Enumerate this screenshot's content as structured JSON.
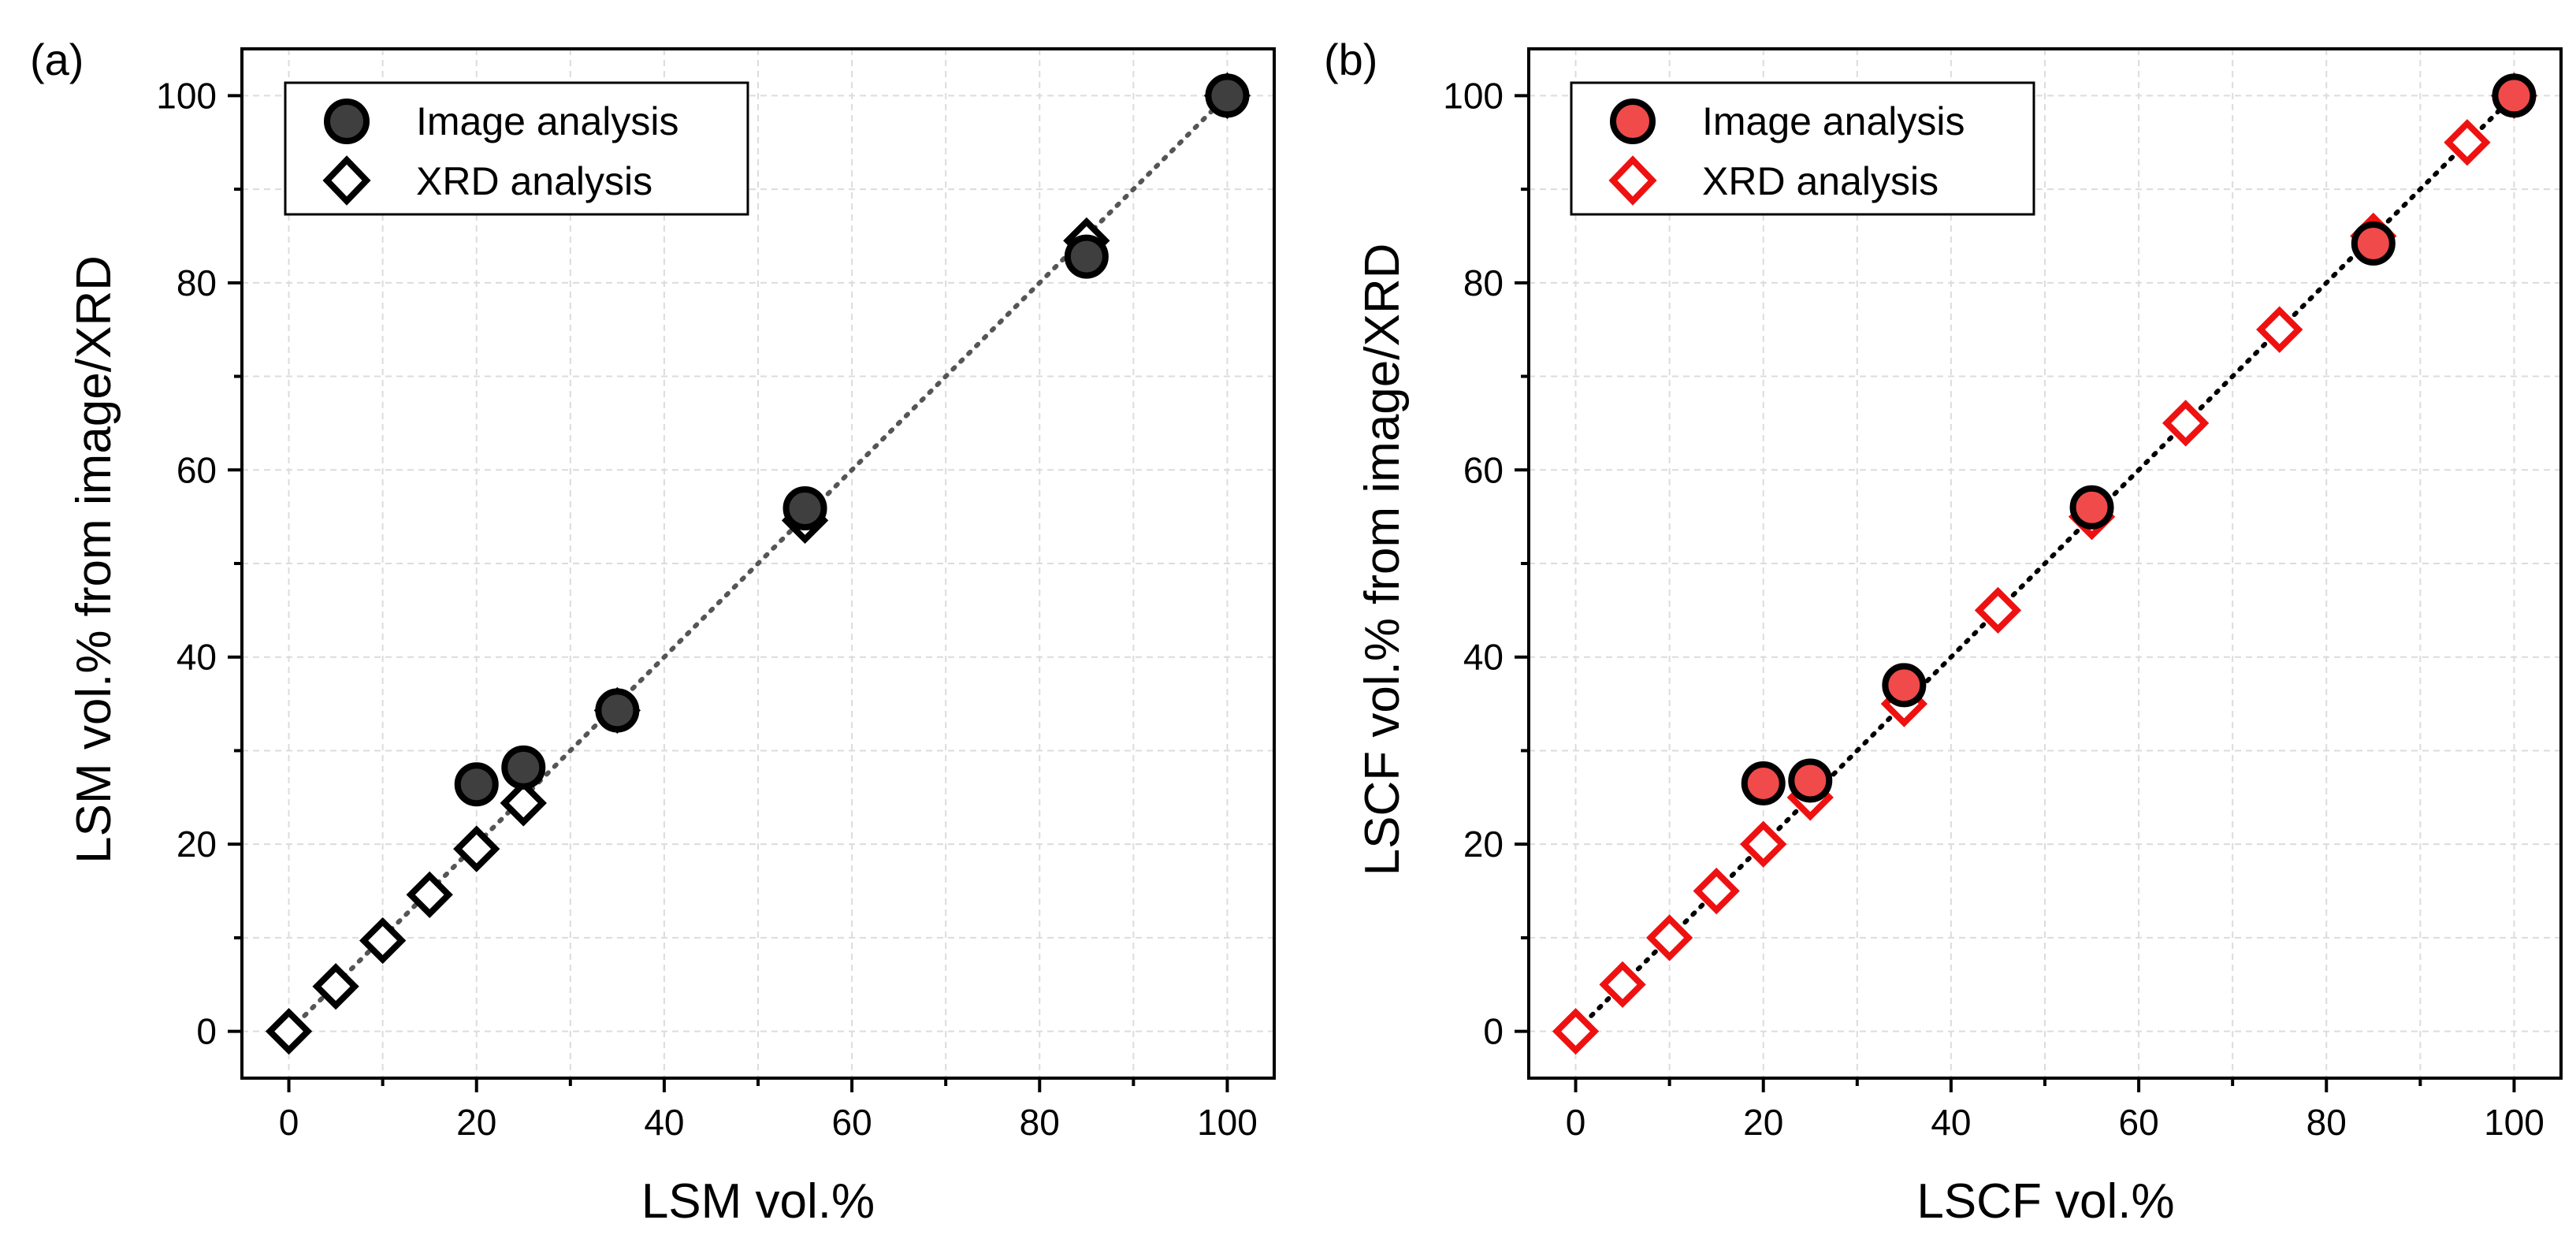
{
  "chart_data": [
    {
      "type": "scatter",
      "panel_label": "(a)",
      "xlabel": "LSM vol.%",
      "ylabel": "LSM vol.% from image/XRD",
      "xlim": [
        -5,
        105
      ],
      "ylim": [
        -5,
        105
      ],
      "xticks": [
        0,
        20,
        40,
        60,
        80,
        100
      ],
      "yticks": [
        0,
        20,
        40,
        60,
        80,
        100
      ],
      "grid": true,
      "legend_position": "top-left",
      "reference_line": {
        "from": [
          0,
          0
        ],
        "to": [
          100,
          100
        ],
        "style": "dotted",
        "color": "#555555"
      },
      "series": [
        {
          "name": "Image analysis",
          "marker": "circle",
          "fill": "#3f3f3f",
          "stroke": "#000000",
          "x": [
            20,
            25,
            35,
            55,
            85,
            100
          ],
          "y": [
            26.4,
            28.2,
            34.3,
            55.9,
            82.8,
            100
          ]
        },
        {
          "name": "XRD analysis",
          "marker": "diamond",
          "fill": "#ffffff",
          "stroke": "#000000",
          "x": [
            0,
            5,
            10,
            15,
            20,
            25,
            35,
            55,
            85,
            100
          ],
          "y": [
            0,
            4.8,
            9.7,
            14.6,
            19.5,
            24.4,
            34.3,
            54.6,
            84.5,
            100
          ]
        }
      ]
    },
    {
      "type": "scatter",
      "panel_label": "(b)",
      "xlabel": "LSCF vol.%",
      "ylabel": "LSCF vol.% from image/XRD",
      "xlim": [
        -5,
        105
      ],
      "ylim": [
        -5,
        105
      ],
      "xticks": [
        0,
        20,
        40,
        60,
        80,
        100
      ],
      "yticks": [
        0,
        20,
        40,
        60,
        80,
        100
      ],
      "grid": true,
      "legend_position": "top-left",
      "reference_line": {
        "from": [
          0,
          0
        ],
        "to": [
          100,
          100
        ],
        "style": "dotted",
        "color": "#000000"
      },
      "series": [
        {
          "name": "Image analysis",
          "marker": "circle",
          "fill": "#f04a4a",
          "stroke": "#000000",
          "x": [
            20,
            25,
            35,
            55,
            85,
            100
          ],
          "y": [
            26.5,
            26.8,
            37,
            56,
            84.2,
            100
          ]
        },
        {
          "name": "XRD analysis",
          "marker": "diamond",
          "fill": "#ffffff",
          "stroke": "#ee1111",
          "x": [
            0,
            5,
            10,
            15,
            20,
            25,
            35,
            45,
            55,
            65,
            75,
            85,
            95,
            100
          ],
          "y": [
            0,
            5,
            10,
            15,
            20,
            25,
            35,
            45,
            55,
            65,
            75,
            85,
            95,
            100
          ]
        }
      ]
    }
  ]
}
